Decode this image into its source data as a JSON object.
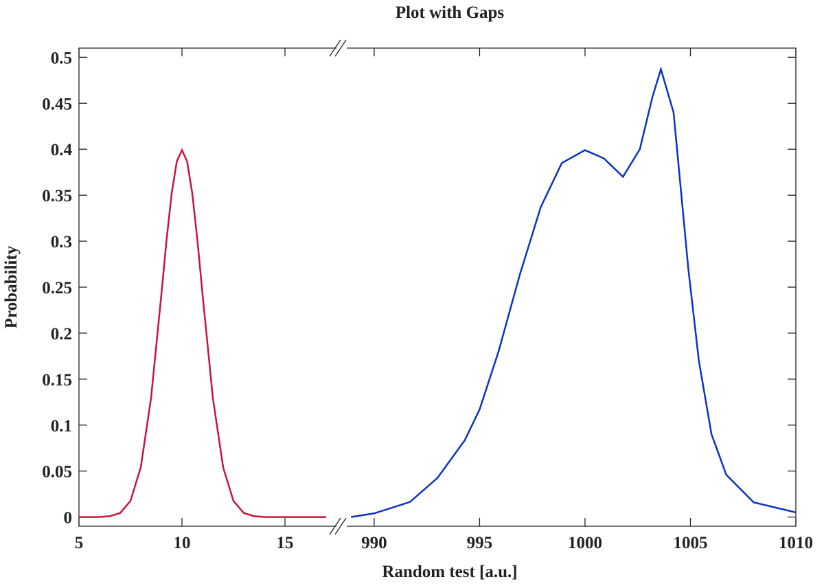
{
  "chart_data": {
    "type": "line",
    "title": "Plot with Gaps",
    "x_label": "Random test [a.u.]",
    "y_label": "Probability",
    "ylim": [
      -0.01,
      0.51
    ],
    "yticks": [
      0,
      0.05,
      0.1,
      0.15,
      0.2,
      0.25,
      0.3,
      0.35,
      0.4,
      0.45,
      0.5
    ],
    "panels": [
      {
        "xlim": [
          5,
          17.5
        ],
        "xticks": [
          5,
          10,
          15
        ],
        "series": [
          {
            "color": "#c8143c",
            "x": [
              5,
              5.5,
              6,
              6.5,
              7,
              7.5,
              8,
              8.5,
              9,
              9.25,
              9.5,
              9.75,
              10,
              10.25,
              10.5,
              10.75,
              11,
              11.5,
              12,
              12.5,
              13,
              13.5,
              14,
              14.5,
              15,
              16,
              17
            ],
            "values": [
              0,
              2e-05,
              0.0001,
              0.0009,
              0.0044,
              0.0175,
              0.054,
              0.1295,
              0.242,
              0.3011,
              0.352,
              0.3867,
              0.399,
              0.3867,
              0.352,
              0.3011,
              0.242,
              0.1295,
              0.054,
              0.0175,
              0.0044,
              0.0009,
              0.0001,
              2e-05,
              0,
              0,
              0
            ]
          }
        ]
      },
      {
        "xlim": [
          988.7,
          1010
        ],
        "xticks": [
          990,
          995,
          1000,
          1005,
          1010
        ],
        "series": [
          {
            "color": "#0a32c8",
            "x": [
              988.9,
              990,
              991.7,
              993,
              994.3,
              995,
              995.9,
              996.9,
              997.9,
              998.9,
              1000,
              1000.9,
              1001.8,
              1002.6,
              1003.2,
              1003.6,
              1004.2,
              1004.9,
              1005.4,
              1006,
              1006.7,
              1008,
              1010
            ],
            "values": [
              0,
              0.004,
              0.0164,
              0.0425,
              0.0836,
              0.117,
              0.18,
              0.263,
              0.337,
              0.385,
              0.399,
              0.39,
              0.37,
              0.4,
              0.457,
              0.487,
              0.44,
              0.27,
              0.17,
              0.09,
              0.046,
              0.016,
              0.005
            ]
          }
        ]
      }
    ]
  }
}
